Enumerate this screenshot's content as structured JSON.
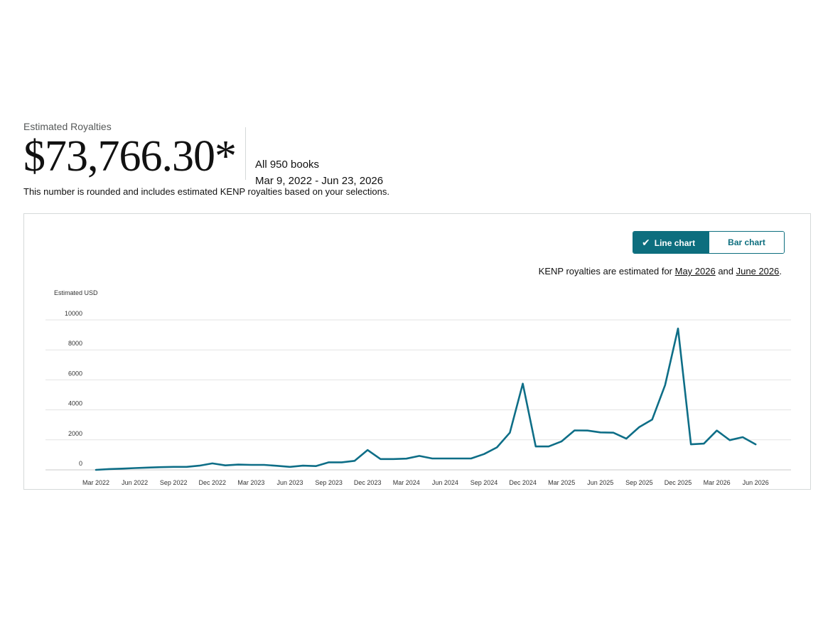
{
  "summary": {
    "label": "Estimated Royalties",
    "amount": "$73,766.30*",
    "books": "All 950 books",
    "date_range": "Mar 9, 2022 - Jun 23, 2026",
    "note": "This number is rounded and includes estimated KENP royalties based on your selections."
  },
  "toggle": {
    "line_label": "Line chart",
    "bar_label": "Bar chart",
    "selected": "line"
  },
  "kenp": {
    "prefix": "KENP royalties are estimated for ",
    "month1": "May 2026",
    "and": " and ",
    "month2": "June 2026",
    "suffix": "."
  },
  "colors": {
    "accent": "#0d6e7e",
    "line": "#0e6e87",
    "grid": "#e3e3e3"
  },
  "chart_data": {
    "type": "line",
    "ylabel": "Estimated USD",
    "ylim": [
      0,
      10000
    ],
    "yticks": [
      0,
      2000,
      4000,
      6000,
      8000,
      10000
    ],
    "grid": true,
    "x_tick_labels": [
      "Mar 2022",
      "Jun 2022",
      "Sep 2022",
      "Dec 2022",
      "Mar 2023",
      "Jun 2023",
      "Sep 2023",
      "Dec 2023",
      "Mar 2024",
      "Jun 2024",
      "Sep 2024",
      "Dec 2024",
      "Mar 2025",
      "Jun 2025",
      "Sep 2025",
      "Dec 2025",
      "Mar 2026",
      "Jun 2026"
    ],
    "x": [
      "2022-03",
      "2022-04",
      "2022-05",
      "2022-06",
      "2022-07",
      "2022-08",
      "2022-09",
      "2022-10",
      "2022-11",
      "2022-12",
      "2023-01",
      "2023-02",
      "2023-03",
      "2023-04",
      "2023-05",
      "2023-06",
      "2023-07",
      "2023-08",
      "2023-09",
      "2023-10",
      "2023-11",
      "2023-12",
      "2024-01",
      "2024-02",
      "2024-03",
      "2024-04",
      "2024-05",
      "2024-06",
      "2024-07",
      "2024-08",
      "2024-09",
      "2024-10",
      "2024-11",
      "2024-12",
      "2025-01",
      "2025-02",
      "2025-03",
      "2025-04",
      "2025-05",
      "2025-06",
      "2025-07",
      "2025-08",
      "2025-09",
      "2025-10",
      "2025-11",
      "2025-12",
      "2026-01",
      "2026-02",
      "2026-03",
      "2026-04",
      "2026-05",
      "2026-06"
    ],
    "values": [
      0,
      50,
      80,
      120,
      150,
      180,
      200,
      200,
      280,
      430,
      300,
      350,
      330,
      330,
      270,
      200,
      280,
      250,
      500,
      500,
      600,
      1320,
      720,
      720,
      750,
      930,
      760,
      760,
      760,
      760,
      1050,
      1500,
      2480,
      5750,
      1560,
      1560,
      1900,
      2630,
      2620,
      2500,
      2480,
      2080,
      2850,
      3350,
      5650,
      9420,
      1700,
      1750,
      2620,
      1980,
      2180,
      1700
    ]
  }
}
